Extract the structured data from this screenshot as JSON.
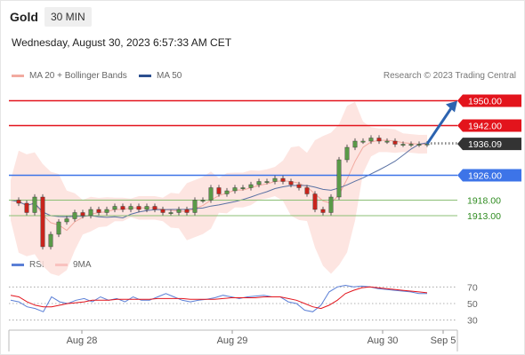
{
  "header": {
    "instrument": "Gold",
    "timeframe": "30 MIN",
    "datetime": "Wednesday, August 30, 2023 6:57:33 AM CET"
  },
  "legend": {
    "ma20": "MA 20 + Bollinger Bands",
    "ma50": "MA 50",
    "credit": "Research © 2023 Trading Central",
    "rsi": "RSI",
    "ma9": "9MA"
  },
  "colors": {
    "resistance": "#e3141c",
    "pivot": "#3d74e8",
    "support": "#8bbf74",
    "bollinger_fill": "#fde0dc",
    "ma20": "#f2aaa0",
    "ma50": "#5a71a3",
    "rsi": "#5b7fd6",
    "rsi_ma": "#e3141c",
    "bull_candle": "#5a9a48",
    "bear_candle": "#c8241c",
    "arrow": "#2c63b0"
  },
  "chart_data": [
    {
      "type": "candlestick",
      "x_ticks": [
        "Aug 28",
        "Aug 29",
        "Aug 30",
        "Sep 5"
      ],
      "ylim": [
        1899,
        1955
      ],
      "price_levels": [
        {
          "value": 1950.0,
          "label": "1950.00",
          "kind": "resistance"
        },
        {
          "value": 1942.0,
          "label": "1942.00",
          "kind": "resistance"
        },
        {
          "value": 1936.09,
          "label": "1936.09",
          "kind": "last"
        },
        {
          "value": 1926.0,
          "label": "1926.00",
          "kind": "pivot"
        },
        {
          "value": 1918.0,
          "label": "1918.00",
          "kind": "support"
        },
        {
          "value": 1913.0,
          "label": "1913.00",
          "kind": "support"
        }
      ],
      "close_path": [
        1918,
        1917,
        1914,
        1919,
        1903,
        1907,
        1911,
        1912,
        1914,
        1913,
        1915,
        1914,
        1915,
        1916,
        1915,
        1916,
        1915,
        1916,
        1915,
        1914,
        1914,
        1915,
        1914,
        1918,
        1918,
        1922,
        1920,
        1921,
        1922,
        1922,
        1923,
        1924,
        1924,
        1925,
        1924,
        1923,
        1922,
        1920,
        1915,
        1914,
        1919,
        1931,
        1935,
        1937,
        1937,
        1938,
        1937,
        1937,
        1936,
        1936,
        1936,
        1936,
        1936.09
      ],
      "projection": {
        "from": 1936.09,
        "to": 1950.0
      }
    },
    {
      "type": "line",
      "title": "RSI",
      "ylim": [
        20,
        80
      ],
      "y_ticks": [
        70,
        50,
        30
      ],
      "series": [
        {
          "name": "RSI",
          "values": [
            54,
            52,
            46,
            44,
            40,
            58,
            52,
            50,
            54,
            56,
            52,
            58,
            54,
            56,
            52,
            58,
            54,
            54,
            58,
            62,
            58,
            54,
            52,
            54,
            55,
            57,
            60,
            58,
            56,
            58,
            59,
            60,
            58,
            58,
            52,
            50,
            42,
            40,
            48,
            64,
            70,
            72,
            70,
            71,
            70,
            68,
            67,
            66,
            65,
            64,
            62,
            62
          ]
        },
        {
          "name": "9MA",
          "values": [
            60,
            58,
            52,
            48,
            46,
            46,
            48,
            50,
            51,
            52,
            54,
            54,
            54,
            55,
            55,
            55,
            55,
            55,
            56,
            56,
            56,
            56,
            55,
            55,
            55,
            55,
            56,
            57,
            57,
            57,
            57,
            58,
            58,
            58,
            56,
            54,
            50,
            46,
            44,
            48,
            54,
            62,
            66,
            69,
            70,
            69,
            68,
            67,
            66,
            65,
            64,
            63
          ]
        }
      ]
    }
  ]
}
